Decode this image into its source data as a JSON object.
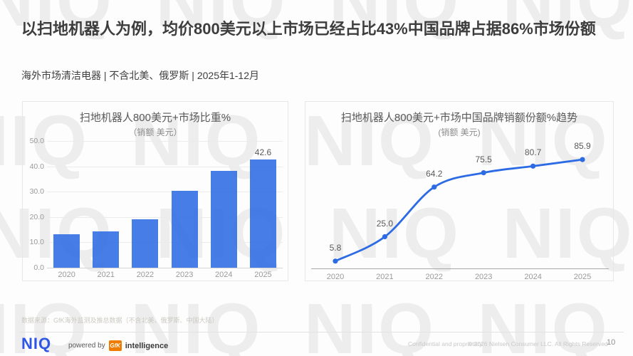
{
  "slide": {
    "title": "以扫地机器人为例，均价800美元以上市场已经占比43%中国品牌占据86%市场份额",
    "subtitle": "海外市场清洁电器 | 不含北美、俄罗斯 | 2025年1-12月",
    "watermark_text": "NIQ"
  },
  "chart_data": [
    {
      "type": "bar",
      "title": "扫地机器人800美元+市场比重%",
      "subtitle": "（销额 美元）",
      "categories": [
        "2020",
        "2021",
        "2022",
        "2023",
        "2024",
        "2025"
      ],
      "values": [
        13.2,
        14.2,
        19.0,
        30.4,
        38.2,
        42.6
      ],
      "data_labels": [
        "",
        "",
        "",
        "",
        "",
        "42.6"
      ],
      "ylim": [
        0,
        50
      ],
      "y_tick_labels": [
        "50.0",
        "40.0",
        "30.0",
        "20.0",
        "10.0",
        "0.0"
      ],
      "grid": true,
      "legend": false,
      "bar_color": "#2d6be4"
    },
    {
      "type": "line",
      "title": "扫地机器人800美元+市场中国品牌销额份额%趋势",
      "subtitle": "(销额 美元)",
      "categories": [
        "2020",
        "2021",
        "2022",
        "2023",
        "2024",
        "2025"
      ],
      "values": [
        5.8,
        25.0,
        64.2,
        75.5,
        80.7,
        85.9
      ],
      "data_labels": [
        "5.8",
        "25.0",
        "64.2",
        "75.5",
        "80.7",
        "85.9"
      ],
      "ylim": [
        0,
        100
      ],
      "grid": false,
      "legend": false,
      "line_color": "#2d6be4"
    }
  ],
  "footer": {
    "source": "数据来源：GfK海外监测及推总数据（不含北美、俄罗斯、中国大陆）",
    "brand": "NIQ",
    "powered_by": "powered by",
    "gfk_logo": "GfK",
    "gfk_suffix": "intelligence",
    "confidential": "Confidential and proprietary",
    "copyright": "© 2026 Nielsen Consumer LLC. All Rights Reserved",
    "page_number": "10"
  },
  "colors": {
    "accent_blue": "#2d6be4",
    "niq_logo_blue": "#2e55e6",
    "gfk_orange": "#ef7c00"
  }
}
